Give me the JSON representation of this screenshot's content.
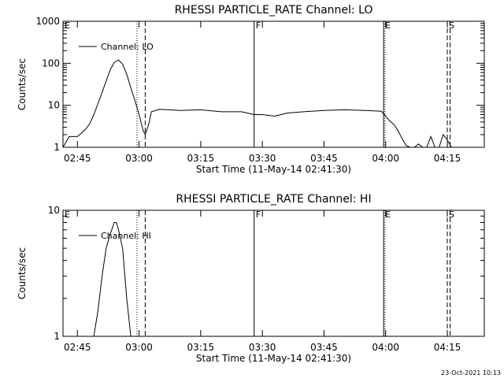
{
  "chart_data": [
    {
      "type": "line",
      "title": "RHESSI PARTICLE_RATE Channel: LO",
      "xlabel": "Start Time (11-May-14 02:41:30)",
      "ylabel": "Counts/sec",
      "yscale": "log",
      "xlim": [
        "02:41:30",
        "04:24:00"
      ],
      "ylim": [
        1,
        1000
      ],
      "xticks": [
        "02:45",
        "03:00",
        "03:15",
        "03:30",
        "03:45",
        "04:00",
        "04:15"
      ],
      "yticks": [
        "1",
        "10",
        "100",
        "1000"
      ],
      "legend": {
        "label": "Channel: LO",
        "placement": "top-left"
      },
      "markers": [
        {
          "label": "E",
          "time": "02:41:30",
          "style": "none"
        },
        {
          "label": "",
          "time": "02:59:30",
          "style": "dotted"
        },
        {
          "label": "",
          "time": "03:01:30",
          "style": "dashed"
        },
        {
          "label": "F",
          "time": "03:28:00",
          "style": "solid"
        },
        {
          "label": "E",
          "time": "03:59:30",
          "style": "solid"
        },
        {
          "label": "",
          "time": "03:59:50",
          "style": "dotted"
        },
        {
          "label": "S",
          "time": "04:15:00",
          "style": "dashed"
        },
        {
          "label": "",
          "time": "04:15:40",
          "style": "dashed"
        }
      ],
      "series": [
        {
          "name": "Channel: LO",
          "x": [
            "02:41:30",
            "02:43:00",
            "02:44:00",
            "02:45:00",
            "02:46:00",
            "02:47:00",
            "02:48:00",
            "02:49:00",
            "02:50:00",
            "02:51:00",
            "02:52:00",
            "02:53:00",
            "02:54:00",
            "02:55:00",
            "02:56:00",
            "02:57:00",
            "02:58:00",
            "02:59:00",
            "03:00:00",
            "03:01:00",
            "03:01:30",
            "03:02:00",
            "03:02:30",
            "03:03:00",
            "03:05:00",
            "03:10:00",
            "03:15:00",
            "03:20:00",
            "03:25:00",
            "03:28:00",
            "03:30:00",
            "03:33:00",
            "03:36:00",
            "03:40:00",
            "03:45:00",
            "03:50:00",
            "03:55:00",
            "03:59:00",
            "04:00:00",
            "04:01:00",
            "04:02:00",
            "04:03:00",
            "04:04:00",
            "04:05:00",
            "04:06:00",
            "04:07:00",
            "04:08:00",
            "04:09:00",
            "04:10:00",
            "04:11:00",
            "04:12:00",
            "04:13:00",
            "04:14:00",
            "04:15:00",
            "04:16:00",
            "04:18:00",
            "04:20:00",
            "04:23:00"
          ],
          "y": [
            1,
            1.8,
            1.8,
            1.8,
            2.2,
            2.7,
            3.6,
            6,
            11,
            20,
            38,
            70,
            105,
            120,
            95,
            55,
            26,
            13,
            6,
            2.5,
            2,
            2.8,
            4,
            7,
            8,
            7.5,
            7.8,
            7,
            7,
            6,
            6,
            5.5,
            6.5,
            7,
            7.5,
            7.8,
            7.5,
            7.2,
            5.5,
            4.2,
            3.5,
            2.5,
            1.6,
            1.1,
            1,
            1,
            1.2,
            1,
            1,
            1.8,
            1,
            1,
            2,
            1.5,
            1,
            1,
            1,
            1
          ]
        }
      ]
    },
    {
      "type": "line",
      "title": "RHESSI PARTICLE_RATE Channel: HI",
      "xlabel": "Start Time (11-May-14 02:41:30)",
      "ylabel": "Counts/sec",
      "yscale": "log",
      "xlim": [
        "02:41:30",
        "04:24:00"
      ],
      "ylim": [
        1,
        10
      ],
      "xticks": [
        "02:45",
        "03:00",
        "03:15",
        "03:30",
        "03:45",
        "04:00",
        "04:15"
      ],
      "yticks": [
        "1",
        "10"
      ],
      "legend": {
        "label": "Channel: HI",
        "placement": "top-left"
      },
      "markers": [
        {
          "label": "E",
          "time": "02:41:30",
          "style": "none"
        },
        {
          "label": "",
          "time": "02:59:30",
          "style": "dotted"
        },
        {
          "label": "",
          "time": "03:01:30",
          "style": "dashed"
        },
        {
          "label": "F",
          "time": "03:28:00",
          "style": "solid"
        },
        {
          "label": "E",
          "time": "03:59:30",
          "style": "solid"
        },
        {
          "label": "",
          "time": "03:59:50",
          "style": "dotted"
        },
        {
          "label": "S",
          "time": "04:15:00",
          "style": "dashed"
        },
        {
          "label": "",
          "time": "04:15:40",
          "style": "dashed"
        }
      ],
      "series": [
        {
          "name": "Channel: HI",
          "x": [
            "02:49:00",
            "02:50:00",
            "02:51:00",
            "02:52:00",
            "02:53:00",
            "02:54:00",
            "02:54:30",
            "02:55:00",
            "02:56:00",
            "02:57:00",
            "02:58:00"
          ],
          "y": [
            1,
            1.6,
            3,
            5,
            6.5,
            8,
            8,
            7,
            5,
            2,
            1
          ]
        }
      ]
    }
  ],
  "footer": {
    "timestamp": "23-Oct-2021 10:13"
  }
}
